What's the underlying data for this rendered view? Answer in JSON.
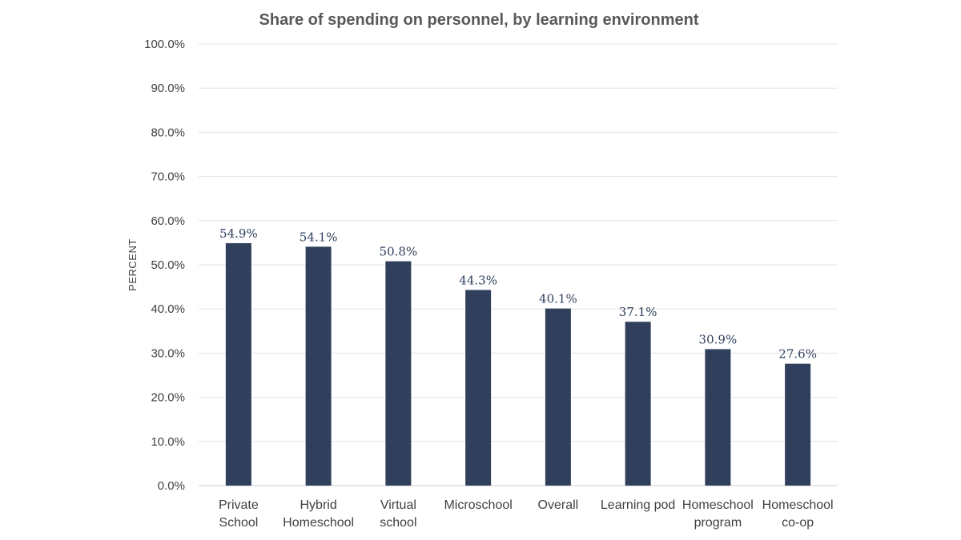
{
  "chart_data": {
    "type": "bar",
    "title": "Share of spending on personnel, by learning environment",
    "xlabel": "",
    "ylabel": "PERCENT",
    "ylim": [
      0,
      100
    ],
    "ytick_labels": [
      "0.0%",
      "10.0%",
      "20.0%",
      "30.0%",
      "40.0%",
      "50.0%",
      "60.0%",
      "70.0%",
      "80.0%",
      "90.0%",
      "100.0%"
    ],
    "categories": [
      [
        "Private",
        "School"
      ],
      [
        "Hybrid",
        "Homeschool"
      ],
      [
        "Virtual",
        "school"
      ],
      [
        "Microschool"
      ],
      [
        "Overall"
      ],
      [
        "Learning pod"
      ],
      [
        "Homeschool",
        "program"
      ],
      [
        "Homeschool",
        "co-op"
      ]
    ],
    "values": [
      54.9,
      54.1,
      50.8,
      44.3,
      40.1,
      37.1,
      30.9,
      27.6
    ],
    "data_labels": [
      "54.9%",
      "54.1%",
      "50.8%",
      "44.3%",
      "40.1%",
      "37.1%",
      "30.9%",
      "27.6%"
    ],
    "grid": true,
    "legend": "none",
    "bar_color": "#2f3f5c"
  }
}
